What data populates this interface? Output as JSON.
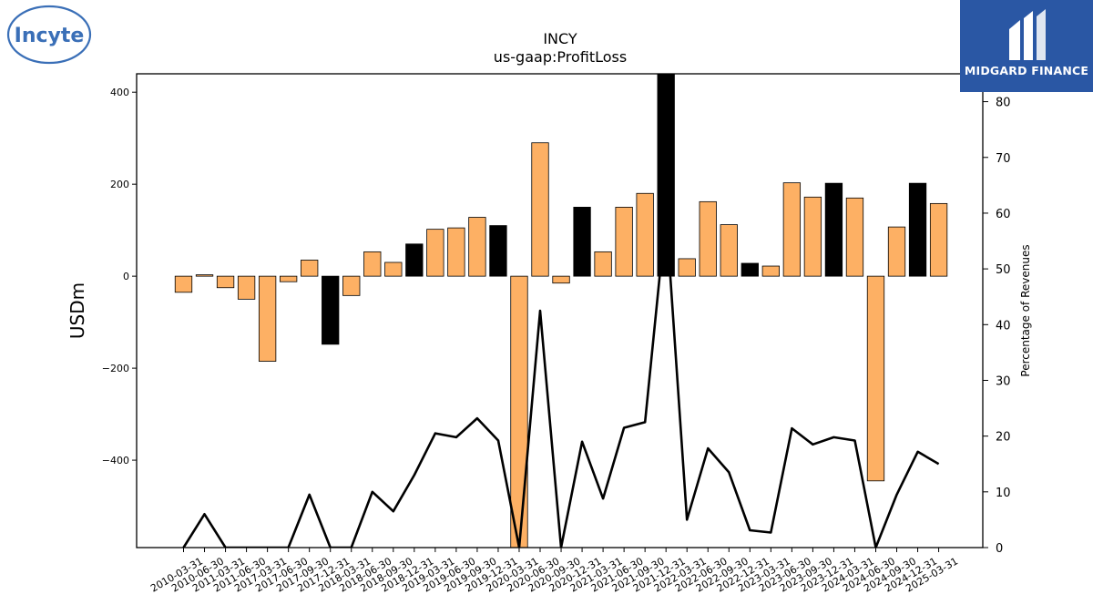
{
  "logos": {
    "left_text": "Incyte",
    "right_text": "MIDGARD FINANCE"
  },
  "colors": {
    "bar_default": "#fdb064",
    "bar_highlight": "#000000",
    "line": "#000000",
    "logo_blue": "#3a6fb7",
    "logo_right_bg": "#2a57a4"
  },
  "chart_data": {
    "type": "bar",
    "title": "INCY",
    "subtitle": "us-gaap:ProfitLoss",
    "ylabel": "USDm",
    "y2label": "Percentage of Revenues",
    "ylim": [
      -590,
      440
    ],
    "y2lim": [
      0,
      85
    ],
    "yticks": [
      -400,
      -200,
      0,
      200,
      400
    ],
    "y2ticks": [
      0,
      10,
      20,
      30,
      40,
      50,
      60,
      70,
      80
    ],
    "x_tick_labels": [
      "2010-03-31",
      "2010-06-30",
      "2011-03-31",
      "2011-06-30",
      "2017-03-31",
      "2017-06-30",
      "2017-09-30",
      "2017-12-31",
      "2018-03-31",
      "2018-06-30",
      "2018-09-30",
      "2018-12-31",
      "2019-03-31",
      "2019-06-30",
      "2019-09-30",
      "2019-12-31",
      "2020-03-31",
      "2020-06-30",
      "2020-09-30",
      "2020-12-31",
      "2021-03-31",
      "2021-06-30",
      "2021-09-30",
      "2021-12-31",
      "2022-03-31",
      "2022-06-30",
      "2022-09-30",
      "2022-12-31",
      "2023-03-31",
      "2023-06-30",
      "2023-09-30",
      "2023-12-31",
      "2024-03-31",
      "2024-06-30",
      "2024-09-30",
      "2024-12-31",
      "2025-03-31"
    ],
    "series": [
      {
        "kind": "bar",
        "values": [
          -35,
          3,
          -25,
          -50,
          -185,
          -12,
          35,
          -148,
          -42,
          53,
          30,
          70,
          102,
          105,
          128,
          110,
          -590,
          290,
          -15,
          150,
          53,
          150,
          180,
          440,
          38,
          162,
          112,
          28,
          22,
          203,
          172,
          202,
          170,
          -445,
          107,
          202,
          158
        ],
        "highlight": [
          false,
          false,
          false,
          false,
          false,
          false,
          false,
          true,
          false,
          false,
          false,
          true,
          false,
          false,
          false,
          true,
          false,
          false,
          false,
          true,
          false,
          false,
          false,
          true,
          false,
          false,
          false,
          true,
          false,
          false,
          false,
          true,
          false,
          false,
          false,
          true,
          false
        ]
      },
      {
        "kind": "line",
        "axis": "right",
        "values": [
          0,
          6,
          0,
          0,
          0,
          0,
          9.5,
          0,
          0,
          10,
          6.5,
          13,
          20.5,
          19.8,
          23.2,
          19.2,
          0,
          42.5,
          0,
          19,
          8.8,
          21.5,
          22.5,
          60,
          5,
          17.8,
          13.5,
          3.1,
          2.7,
          21.4,
          18.5,
          19.8,
          19.2,
          0,
          9.5,
          17.2,
          15
        ]
      }
    ]
  }
}
